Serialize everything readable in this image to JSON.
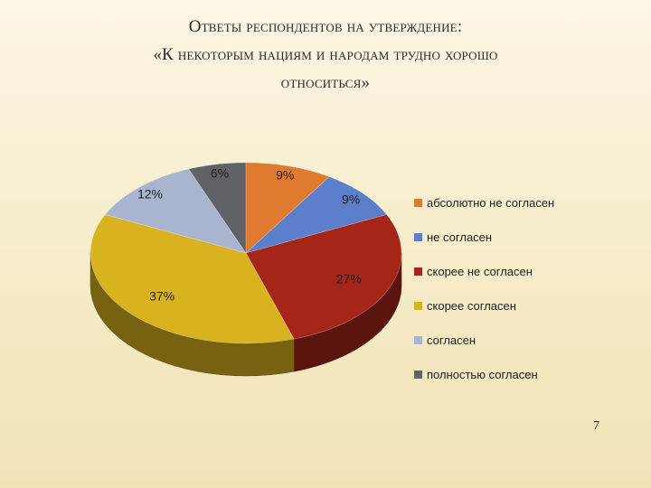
{
  "slide": {
    "title_lines": [
      "Ответы респондентов на утверждение:",
      "«К некоторым нациям и народам трудно хорошо",
      "относиться»"
    ],
    "page_number": "7"
  },
  "chart_data": {
    "type": "pie",
    "title": "",
    "legend_position": "right",
    "slices": [
      {
        "label": "абсолютно не согласен",
        "value": 9,
        "value_label": "9%",
        "color": "#e07a2e"
      },
      {
        "label": "не согласен",
        "value": 9,
        "value_label": "9%",
        "color": "#5b7fca"
      },
      {
        "label": "скорее не согласен",
        "value": 27,
        "value_label": "27%",
        "color": "#a52519"
      },
      {
        "label": "скорее согласен",
        "value": 37,
        "value_label": "37%",
        "color": "#d9b21f"
      },
      {
        "label": "согласен",
        "value": 12,
        "value_label": "12%",
        "color": "#a9b5cf"
      },
      {
        "label": "полностью согласен",
        "value": 6,
        "value_label": "6%",
        "color": "#5f6266"
      }
    ]
  }
}
